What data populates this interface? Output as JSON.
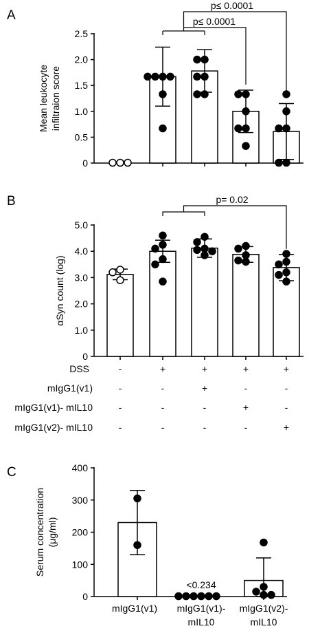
{
  "chart_data": [
    {
      "type": "bar",
      "panel_label": "A",
      "ylabel_lines": [
        "Mean leukocyte",
        "infiltraion score"
      ],
      "ylim": [
        0,
        2.5
      ],
      "yticks": [
        0,
        0.5,
        1.0,
        1.5,
        2.0,
        2.5
      ],
      "ytick_labels": [
        "0",
        "0.5",
        "1.0",
        "1.5",
        "2.0",
        "2.5"
      ],
      "groups": [
        {
          "mean": 0,
          "sd": 0,
          "points": [
            0,
            0,
            0
          ],
          "open": true
        },
        {
          "mean": 1.67,
          "sd": 0.57,
          "points": [
            1.67,
            1.67,
            1.67,
            1.67,
            1.33,
            0.67
          ],
          "open": false
        },
        {
          "mean": 1.78,
          "sd": 0.41,
          "points": [
            2.0,
            2.0,
            1.67,
            1.67,
            1.33,
            1.33
          ],
          "open": false
        },
        {
          "mean": 1.0,
          "sd": 0.41,
          "points": [
            1.33,
            1.33,
            1.0,
            0.67,
            0.67,
            0.33
          ],
          "open": false
        },
        {
          "mean": 0.61,
          "sd": 0.54,
          "points": [
            1.33,
            1.0,
            0.67,
            0.67,
            0,
            0
          ],
          "open": false
        }
      ],
      "significance": [
        {
          "text": "p≤ 0.0001",
          "to_group": 3
        },
        {
          "text": "p≤ 0.0001",
          "to_group": 4
        }
      ]
    },
    {
      "type": "bar",
      "panel_label": "B",
      "ylabel_lines": [
        "αSyn count (log)"
      ],
      "ylim": [
        0,
        5.0
      ],
      "yticks": [
        0,
        1.0,
        2.0,
        3.0,
        4.0,
        5.0
      ],
      "ytick_labels": [
        "0",
        "1.0",
        "2.0",
        "3.0",
        "4.0",
        "5.0"
      ],
      "groups": [
        {
          "mean": 3.12,
          "sd": 0.2,
          "points": [
            3.3,
            3.2,
            2.9
          ],
          "open": true
        },
        {
          "mean": 4.0,
          "sd": 0.42,
          "points": [
            4.6,
            4.25,
            4.1,
            3.7,
            3.5,
            2.85
          ],
          "open": false
        },
        {
          "mean": 4.12,
          "sd": 0.35,
          "points": [
            4.55,
            4.35,
            4.1,
            4.05,
            4.0,
            3.85
          ],
          "open": false
        },
        {
          "mean": 3.88,
          "sd": 0.3,
          "points": [
            4.2,
            4.1,
            3.85,
            3.6,
            3.65
          ],
          "open": false
        },
        {
          "mean": 3.38,
          "sd": 0.5,
          "points": [
            3.9,
            3.6,
            3.5,
            3.2,
            3.1,
            2.85
          ],
          "open": false
        }
      ],
      "significance": [
        {
          "text": "p= 0.02",
          "to_group": 4
        }
      ],
      "condition_table": [
        {
          "label": "DSS",
          "marks": [
            "-",
            "+",
            "+",
            "+",
            "+"
          ]
        },
        {
          "label": "mIgG1(v1)",
          "marks": [
            "-",
            "-",
            "+",
            "-",
            "-"
          ]
        },
        {
          "label": "mIgG1(v1)- mIL10",
          "marks": [
            "-",
            "-",
            "-",
            "+",
            "-"
          ]
        },
        {
          "label": "mIgG1(v2)- mIL10",
          "marks": [
            "-",
            "-",
            "-",
            "-",
            "+"
          ]
        }
      ]
    },
    {
      "type": "bar",
      "panel_label": "C",
      "ylabel_lines": [
        "Serum concentration",
        "(μg/ml)"
      ],
      "ylim": [
        0,
        400
      ],
      "yticks": [
        0,
        100,
        200,
        300,
        400
      ],
      "ytick_labels": [
        "0",
        "100",
        "200",
        "300",
        "400"
      ],
      "categories_lines": [
        [
          "mIgG1(v1)"
        ],
        [
          "mIgG1(v1)-",
          "mIL10"
        ],
        [
          "mIgG1(v2)-",
          "mIL10"
        ]
      ],
      "groups": [
        {
          "mean": 230,
          "sd": 100,
          "points": [
            305,
            160
          ],
          "open": false
        },
        {
          "mean": 0,
          "sd": 0,
          "points": [
            0,
            0,
            0,
            0,
            0,
            0
          ],
          "open": false,
          "annotation": "<0.234"
        },
        {
          "mean": 50,
          "sd": 70,
          "points": [
            168,
            30,
            15,
            5,
            5
          ],
          "open": false
        }
      ]
    }
  ]
}
